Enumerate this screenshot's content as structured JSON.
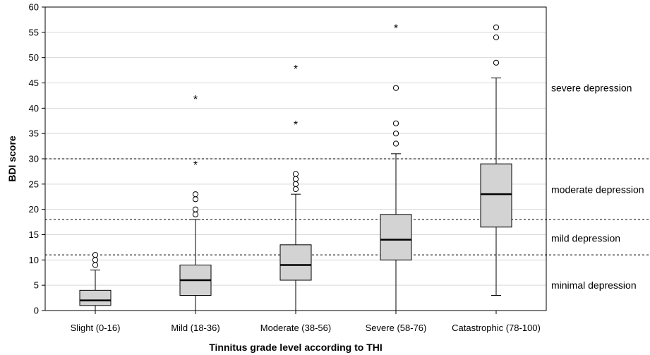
{
  "chart_data": {
    "type": "box",
    "xlabel": "Tinnitus grade level according to THI",
    "ylabel": "BDI score",
    "ylim": [
      0,
      60
    ],
    "yticks": [
      0,
      5,
      10,
      15,
      20,
      25,
      30,
      35,
      40,
      45,
      50,
      55,
      60
    ],
    "grid": true,
    "categories": [
      "Slight (0-16)",
      "Mild (18-36)",
      "Moderate (38-56)",
      "Severe (58-76)",
      "Catastrophic (78-100)"
    ],
    "boxes": [
      {
        "whisker_low": 0,
        "q1": 1,
        "median": 2,
        "q3": 4,
        "whisker_high": 8,
        "outliers": [
          9,
          10,
          11
        ],
        "extremes": []
      },
      {
        "whisker_low": 0,
        "q1": 3,
        "median": 6,
        "q3": 9,
        "whisker_high": 18,
        "outliers": [
          19,
          20,
          22,
          23
        ],
        "extremes": [
          29,
          42
        ]
      },
      {
        "whisker_low": 0,
        "q1": 6,
        "median": 9,
        "q3": 13,
        "whisker_high": 23,
        "outliers": [
          24,
          25,
          26,
          27
        ],
        "extremes": [
          37,
          48
        ]
      },
      {
        "whisker_low": 0,
        "q1": 10,
        "median": 14,
        "q3": 19,
        "whisker_high": 31,
        "outliers": [
          33,
          35,
          37,
          44
        ],
        "extremes": [
          56
        ]
      },
      {
        "whisker_low": 3,
        "q1": 16.5,
        "median": 23,
        "q3": 29,
        "whisker_high": 46,
        "outliers": [
          49,
          54,
          56
        ],
        "extremes": []
      }
    ],
    "thresholds": [
      11,
      18,
      30
    ],
    "bands": [
      {
        "label": "minimal depression",
        "y": 5
      },
      {
        "label": "mild depression",
        "y": 14.3
      },
      {
        "label": "moderate depression",
        "y": 23.9
      },
      {
        "label": "severe depression",
        "y": 44
      }
    ],
    "colors": {
      "box_fill": "#d3d3d3",
      "grid": "#d9d9d9",
      "line": "#000000"
    }
  }
}
